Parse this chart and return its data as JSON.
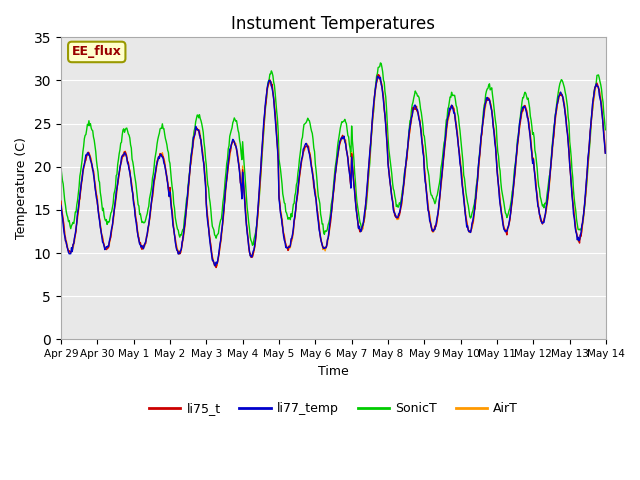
{
  "title": "Instument Temperatures",
  "ylabel": "Temperature (C)",
  "xlabel": "Time",
  "ylim": [
    0,
    35
  ],
  "yticks": [
    0,
    5,
    10,
    15,
    20,
    25,
    30,
    35
  ],
  "plot_bg": "#e8e8e8",
  "line_colors": {
    "li75_t": "#cc0000",
    "li77_temp": "#0000cc",
    "SonicT": "#00cc00",
    "AirT": "#ff9900"
  },
  "annotation_text": "EE_flux",
  "annotation_color": "#990000",
  "annotation_bg": "#ffffcc",
  "annotation_edge": "#999900",
  "x_tick_labels": [
    "Apr 29",
    "Apr 30",
    "May 1",
    "May 2",
    "May 3",
    "May 4",
    "May 5",
    "May 6",
    "May 7",
    "May 8",
    "May 9",
    "May 10",
    "May 11",
    "May 12",
    "May 13",
    "May 14"
  ],
  "num_days": 15,
  "points_per_day": 48,
  "daily_peaks": [
    21.5,
    21.5,
    21.5,
    24.5,
    23.0,
    30.0,
    22.5,
    23.5,
    30.5,
    27.0,
    27.0,
    28.0,
    27.0,
    28.5,
    29.5
  ],
  "daily_mins": [
    10.0,
    10.5,
    10.5,
    10.0,
    8.5,
    9.5,
    10.5,
    10.5,
    12.5,
    14.0,
    12.5,
    12.5,
    12.5,
    13.5,
    11.5
  ],
  "sonic_extra": [
    3.5,
    3.0,
    3.0,
    1.5,
    2.5,
    1.0,
    3.0,
    2.0,
    1.5,
    1.5,
    1.5,
    1.5,
    1.5,
    1.5,
    1.0
  ],
  "sonic_min_extra": [
    3.0,
    3.0,
    3.0,
    2.0,
    3.5,
    1.5,
    3.5,
    2.0,
    0.5,
    1.5,
    3.5,
    2.0,
    2.0,
    2.0,
    1.0
  ]
}
